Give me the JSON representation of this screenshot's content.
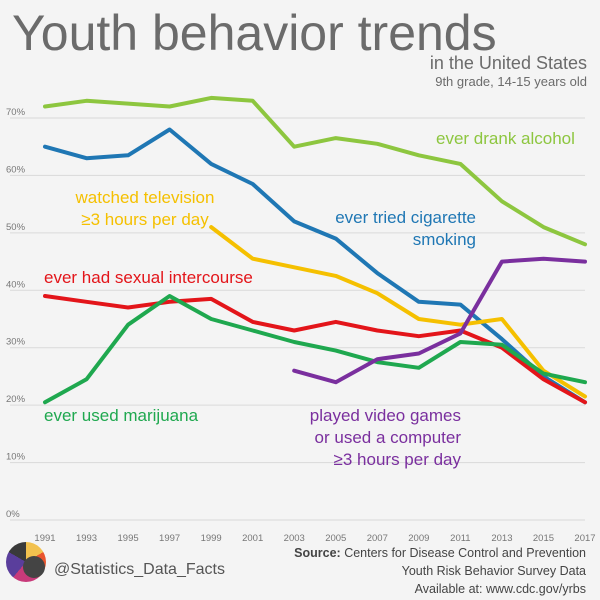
{
  "header": {
    "title": "Youth behavior trends",
    "subtitle": "in the United States",
    "subtitle2": "9th grade, 14-15 years old"
  },
  "footer": {
    "handle": "@Statistics_Data_Facts",
    "source_label": "Source:",
    "source_text": "Centers for Disease Control and Prevention",
    "source_line2": "Youth Risk Behavior Survey Data",
    "source_line3": "Available at: www.cdc.gov/yrbs"
  },
  "colors": {
    "alcohol": "#8dc63f",
    "cigarette": "#1f77b4",
    "television": "#f5c000",
    "sexual": "#e3151a",
    "marijuana": "#1fa84f",
    "videogames": "#7a2f9e",
    "grid": "#d9d9d9",
    "axis_text": "#777777"
  },
  "chart_data": {
    "type": "line",
    "x": [
      1991,
      1993,
      1995,
      1997,
      1999,
      2001,
      2003,
      2005,
      2007,
      2009,
      2011,
      2013,
      2015,
      2017
    ],
    "ylim": [
      0,
      70
    ],
    "yticks": [
      0,
      10,
      20,
      30,
      40,
      50,
      60,
      70
    ],
    "ytick_labels": [
      "0%",
      "10%",
      "20%",
      "30%",
      "40%",
      "50%",
      "60%",
      "70%"
    ],
    "xtick_labels": [
      "1991",
      "1993",
      "1995",
      "1997",
      "1999",
      "2001",
      "2003",
      "2005",
      "2007",
      "2009",
      "2011",
      "2013",
      "2015",
      "2017"
    ],
    "grid": true,
    "series": [
      {
        "key": "alcohol",
        "name": "ever drank alcohol",
        "values": [
          72,
          73,
          72.5,
          72,
          73.5,
          73,
          65,
          66.5,
          65.5,
          63.5,
          62,
          55.5,
          51,
          48
        ]
      },
      {
        "key": "cigarette",
        "name": "ever tried cigarette smoking",
        "values": [
          65,
          63,
          63.5,
          68,
          62,
          58.5,
          52,
          49,
          43,
          38,
          37.5,
          31.5,
          25,
          20.5
        ]
      },
      {
        "key": "television",
        "name": "watched television ≥3 hours per day",
        "values": [
          null,
          null,
          null,
          null,
          51,
          45.5,
          44,
          42.5,
          39.5,
          35,
          34,
          35,
          26,
          21.5
        ]
      },
      {
        "key": "sexual",
        "name": "ever had sexual intercourse",
        "values": [
          39,
          38,
          37,
          38,
          38.5,
          34.5,
          33,
          34.5,
          33,
          32,
          33,
          30,
          24.5,
          20.5
        ]
      },
      {
        "key": "marijuana",
        "name": "ever used marijuana",
        "values": [
          20.5,
          24.5,
          34,
          39,
          35,
          33,
          31,
          29.5,
          27.5,
          26.5,
          31,
          30.5,
          25.5,
          24
        ]
      },
      {
        "key": "videogames",
        "name": "played video games or used a computer ≥3 hours per day",
        "values": [
          null,
          null,
          null,
          null,
          null,
          null,
          26,
          24,
          28,
          29,
          32.5,
          45,
          45.5,
          45
        ]
      }
    ],
    "labels": {
      "alcohol": [
        "ever drank alcohol"
      ],
      "cigarette": [
        "ever tried cigarette",
        "smoking"
      ],
      "television": [
        "watched television",
        "≥3 hours per day"
      ],
      "sexual": [
        "ever had sexual intercourse"
      ],
      "marijuana": [
        "ever used marijuana"
      ],
      "videogames": [
        "played video games",
        "or used a computer",
        "≥3 hours per day"
      ]
    }
  }
}
